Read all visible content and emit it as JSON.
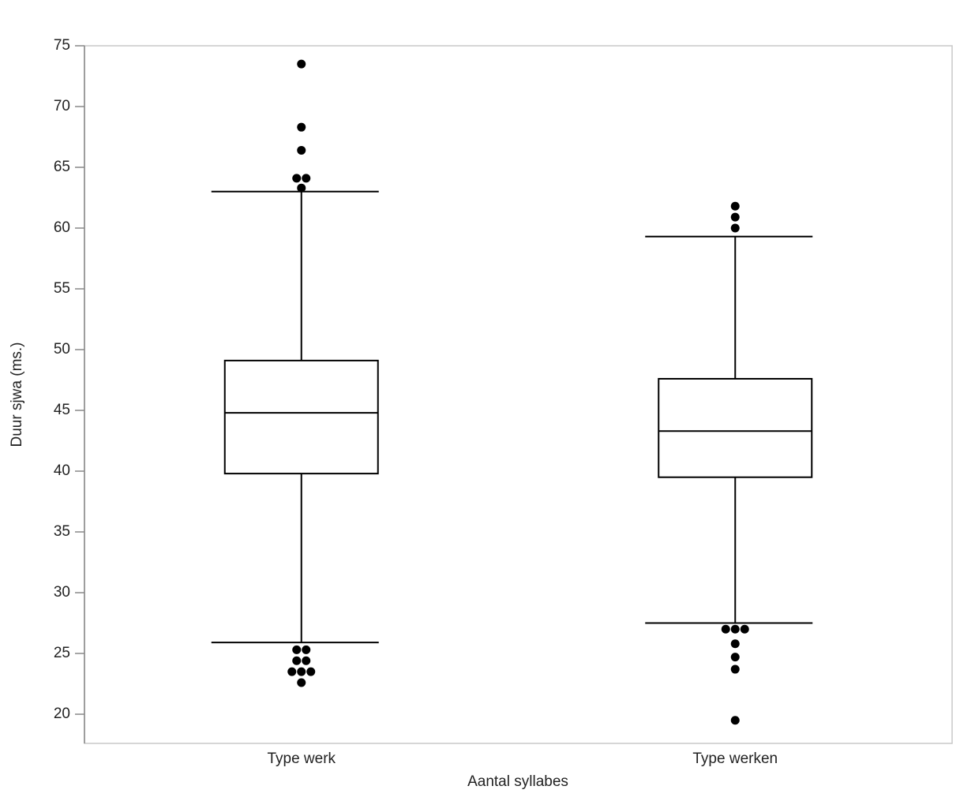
{
  "chart_data": {
    "type": "box",
    "x_label": "Aantal syllabes",
    "y_label": "Duur sjwa (ms.)",
    "categories": [
      "Type werk",
      "Type werken"
    ],
    "boxes": [
      {
        "min": 25.9,
        "q1": 39.8,
        "median": 44.8,
        "q3": 49.1,
        "max": 63,
        "outliers": [
          73.5,
          68.3,
          66.4,
          64.1,
          64.1,
          63.3,
          25.3,
          25.3,
          24.4,
          24.4,
          23.5,
          23.5,
          23.5,
          22.6
        ]
      },
      {
        "min": 27.5,
        "q1": 39.5,
        "median": 43.3,
        "q3": 47.6,
        "max": 59.3,
        "outliers": [
          61.8,
          60.9,
          60,
          27,
          27,
          27,
          25.8,
          24.7,
          23.7,
          19.5
        ]
      }
    ],
    "color": "#000000",
    "box_fill": "#ffffff",
    "ylim": [
      17.6,
      75
    ],
    "yticks": [
      20,
      25,
      30,
      35,
      40,
      45,
      50,
      55,
      60,
      65,
      70,
      75
    ],
    "grid": false
  }
}
